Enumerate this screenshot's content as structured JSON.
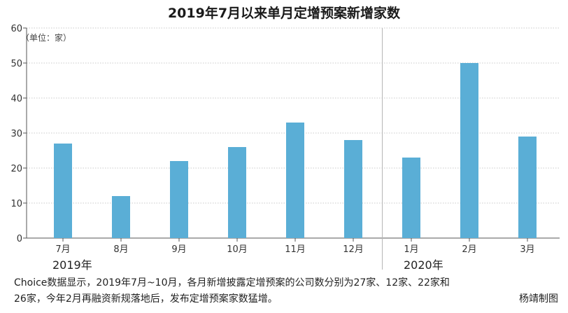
{
  "title": "2019年7月以来单月定增预案新增家数",
  "unit_label": "（单位：家）",
  "caption": {
    "line1": "Choice数据显示，2019年7月~10月，各月新增披露定增预案的公司数分别为27家、12家、22家和",
    "line2": "26家，今年2月再融资新规落地后，发布定增预案家数猛增。"
  },
  "credit": "杨靖制图",
  "colors": {
    "bar": "#5aaed6",
    "grid": "#c9c9c9",
    "axis": "#555555",
    "divider": "#b5b5b5"
  },
  "chart_data": {
    "type": "bar",
    "title": "2019年7月以来单月定增预案新增家数",
    "categories": [
      "7月",
      "8月",
      "9月",
      "10月",
      "11月",
      "12月",
      "1月",
      "2月",
      "3月"
    ],
    "values": [
      27,
      12,
      22,
      26,
      33,
      28,
      23,
      50,
      29
    ],
    "year_groups": [
      {
        "label": "2019年",
        "start_index": 0,
        "end_index": 5
      },
      {
        "label": "2020年",
        "start_index": 6,
        "end_index": 8
      }
    ],
    "ylim": [
      0,
      60
    ],
    "yticks": [
      0,
      10,
      20,
      30,
      40,
      50,
      60
    ],
    "grid": true,
    "ylabel": "（单位：家）",
    "xlabel": ""
  }
}
